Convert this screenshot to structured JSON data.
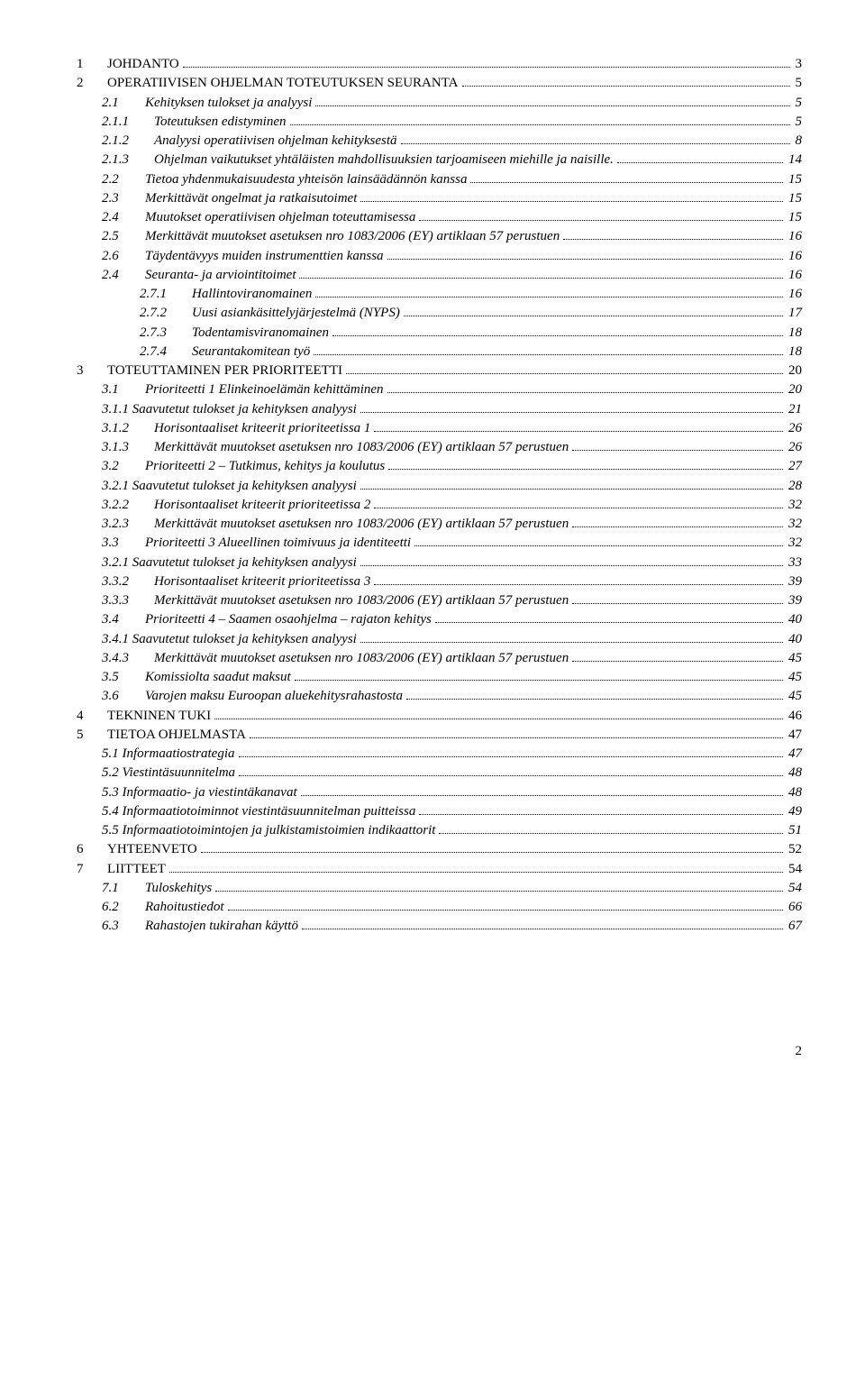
{
  "typography": {
    "font_family": "Times New Roman",
    "base_font_size_pt": 11,
    "text_color": "#000000",
    "background_color": "#ffffff",
    "leader_style": "dotted"
  },
  "page_number": "2",
  "toc": [
    {
      "num": "1",
      "label": "JOHDANTO",
      "page": "3",
      "indent": 0,
      "smallcaps": true
    },
    {
      "num": "2",
      "label": "OPERATIIVISEN OHJELMAN TOTEUTUKSEN SEURANTA",
      "page": "5",
      "indent": 0,
      "smallcaps": true
    },
    {
      "num": "2.1",
      "label": "Kehityksen tulokset ja analyysi",
      "page": "5",
      "indent": 1,
      "italic": true
    },
    {
      "num": "2.1.1",
      "label": "Toteutuksen edistyminen",
      "page": "5",
      "indent": 2,
      "italic": true
    },
    {
      "num": "2.1.2",
      "label": "Analyysi operatiivisen ohjelman kehityksestä",
      "page": "8",
      "indent": 2,
      "italic": true
    },
    {
      "num": "2.1.3",
      "label": "Ohjelman vaikutukset yhtäläisten mahdollisuuksien tarjoamiseen miehille ja naisille.",
      "page": "14",
      "indent": 2,
      "italic": true
    },
    {
      "num": "2.2",
      "label": "Tietoa yhdenmukaisuudesta yhteisön lainsäädännön kanssa",
      "page": "15",
      "indent": 1,
      "italic": true
    },
    {
      "num": "2.3",
      "label": "Merkittävät ongelmat ja ratkaisutoimet",
      "page": "15",
      "indent": 1,
      "italic": true
    },
    {
      "num": "2.4",
      "label": "Muutokset operatiivisen ohjelman toteuttamisessa",
      "page": "15",
      "indent": 1,
      "italic": true
    },
    {
      "num": "2.5",
      "label": "Merkittävät muutokset asetuksen nro 1083/2006 (EY) artiklaan 57 perustuen",
      "page": "16",
      "indent": 1,
      "italic": true
    },
    {
      "num": "2.6",
      "label": "Täydentävyys muiden instrumenttien kanssa",
      "page": "16",
      "indent": 1,
      "italic": true
    },
    {
      "num": "2.4",
      "label": "Seuranta- ja arviointitoimet",
      "page": "16",
      "indent": 1,
      "italic": true
    },
    {
      "num": "2.7.1",
      "label": "Hallintoviranomainen",
      "page": "16",
      "indent": "2b",
      "italic": true
    },
    {
      "num": "2.7.2",
      "label": "Uusi asiankäsittelyjärjestelmä (NYPS)",
      "page": "17",
      "indent": "2b",
      "italic": true
    },
    {
      "num": "2.7.3",
      "label": "Todentamisviranomainen",
      "page": "18",
      "indent": "2b",
      "italic": true
    },
    {
      "num": "2.7.4",
      "label": "Seurantakomitean työ",
      "page": "18",
      "indent": "2b",
      "italic": true
    },
    {
      "num": "3",
      "label": "TOTEUTTAMINEN PER PRIORITEETTI",
      "page": "20",
      "indent": 0,
      "smallcaps": true
    },
    {
      "num": "3.1",
      "label": "Prioriteetti 1 Elinkeinoelämän kehittäminen",
      "page": "20",
      "indent": 1,
      "italic": true
    },
    {
      "num": "3.1.1",
      "label": "Saavutetut tulokset ja kehityksen analyysi",
      "page": "21",
      "indent": "s",
      "italic": true,
      "no_num_space": true
    },
    {
      "num": "3.1.2",
      "label": "Horisontaaliset kriteerit prioriteetissa 1",
      "page": "26",
      "indent": 2,
      "italic": true
    },
    {
      "num": "3.1.3",
      "label": "Merkittävät muutokset asetuksen nro 1083/2006 (EY) artiklaan 57 perustuen",
      "page": "26",
      "indent": 2,
      "italic": true
    },
    {
      "num": "3.2",
      "label": "Prioriteetti 2 – Tutkimus, kehitys ja koulutus",
      "page": "27",
      "indent": 1,
      "italic": true
    },
    {
      "num": "3.2.1",
      "label": "Saavutetut tulokset ja kehityksen analyysi",
      "page": "28",
      "indent": "s",
      "italic": true,
      "no_num_space": true
    },
    {
      "num": "3.2.2",
      "label": "Horisontaaliset kriteerit prioriteetissa 2",
      "page": "32",
      "indent": 2,
      "italic": true
    },
    {
      "num": "3.2.3",
      "label": "Merkittävät muutokset asetuksen nro 1083/2006 (EY) artiklaan 57 perustuen",
      "page": "32",
      "indent": 2,
      "italic": true
    },
    {
      "num": "3.3",
      "label": "Prioriteetti 3 Alueellinen toimivuus ja identiteetti",
      "page": "32",
      "indent": 1,
      "italic": true
    },
    {
      "num": "3.2.1",
      "label": "Saavutetut tulokset ja kehityksen analyysi",
      "page": "33",
      "indent": "s",
      "italic": true,
      "no_num_space": true
    },
    {
      "num": "3.3.2",
      "label": "Horisontaaliset kriteerit prioriteetissa 3",
      "page": "39",
      "indent": 2,
      "italic": true
    },
    {
      "num": "3.3.3",
      "label": "Merkittävät muutokset asetuksen nro 1083/2006 (EY) artiklaan 57 perustuen",
      "page": "39",
      "indent": 2,
      "italic": true
    },
    {
      "num": "3.4",
      "label": "Prioriteetti 4 – Saamen osaohjelma – rajaton kehitys",
      "page": "40",
      "indent": 1,
      "italic": true
    },
    {
      "num": "3.4.1",
      "label": "Saavutetut tulokset ja kehityksen analyysi",
      "page": "40",
      "indent": "s",
      "italic": true,
      "no_num_space": true
    },
    {
      "num": "3.4.3",
      "label": "Merkittävät muutokset asetuksen nro 1083/2006 (EY) artiklaan 57 perustuen",
      "page": "45",
      "indent": 2,
      "italic": true
    },
    {
      "num": "3.5",
      "label": "Komissiolta saadut maksut",
      "page": "45",
      "indent": 1,
      "italic": true
    },
    {
      "num": "3.6",
      "label": "Varojen maksu Euroopan aluekehitysrahastosta",
      "page": "45",
      "indent": 1,
      "italic": true
    },
    {
      "num": "4",
      "label": "TEKNINEN TUKI",
      "page": "46",
      "indent": 0,
      "smallcaps": true
    },
    {
      "num": "5",
      "label": "TIETOA OHJELMASTA",
      "page": "47",
      "indent": 0,
      "smallcaps": true
    },
    {
      "num": "5.1",
      "label": "Informaatiostrategia",
      "page": "47",
      "indent": "s",
      "italic": true,
      "no_num_space": true
    },
    {
      "num": "5.2",
      "label": "Viestintäsuunnitelma",
      "page": "48",
      "indent": "s",
      "italic": true,
      "no_num_space": true
    },
    {
      "num": "5.3",
      "label": "Informaatio- ja viestintäkanavat",
      "page": "48",
      "indent": "s",
      "italic": true,
      "no_num_space": true
    },
    {
      "num": "5.4",
      "label": "Informaatiotoiminnot viestintäsuunnitelman puitteissa",
      "page": "49",
      "indent": "s",
      "italic": true,
      "no_num_space": true
    },
    {
      "num": "5.5",
      "label": "Informaatiotoimintojen ja julkistamistoimien indikaattorit",
      "page": "51",
      "indent": "s",
      "italic": true,
      "no_num_space": true
    },
    {
      "num": "6",
      "label": "YHTEENVETO",
      "page": "52",
      "indent": 0,
      "smallcaps": true
    },
    {
      "num": "7",
      "label": "LIITTEET",
      "page": "54",
      "indent": 0,
      "smallcaps": true
    },
    {
      "num": "7.1",
      "label": "Tuloskehitys",
      "page": "54",
      "indent": 1,
      "italic": true
    },
    {
      "num": "6.2",
      "label": "Rahoitustiedot",
      "page": "66",
      "indent": 1,
      "italic": true
    },
    {
      "num": "6.3",
      "label": "Rahastojen tukirahan käyttö",
      "page": "67",
      "indent": 1,
      "italic": true
    }
  ]
}
